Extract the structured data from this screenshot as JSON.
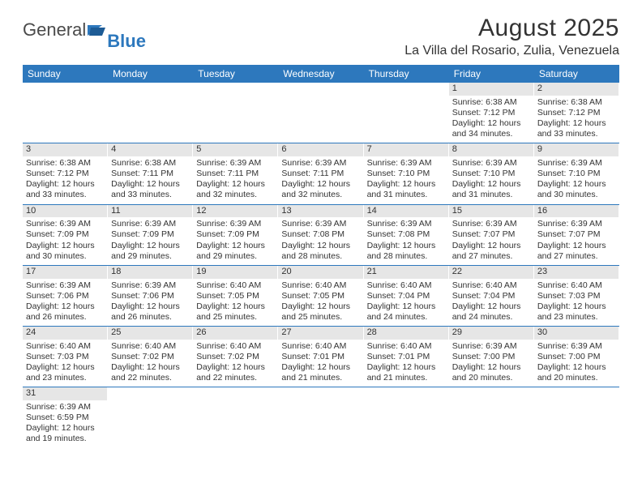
{
  "logo": {
    "text_general": "General",
    "text_blue": "Blue"
  },
  "header": {
    "title": "August 2025",
    "location": "La Villa del Rosario, Zulia, Venezuela"
  },
  "colors": {
    "header_bg": "#2d78bd",
    "header_text": "#ffffff",
    "daynum_bg": "#e6e6e6",
    "row_border": "#2d78bd",
    "text": "#333333"
  },
  "days_of_week": [
    "Sunday",
    "Monday",
    "Tuesday",
    "Wednesday",
    "Thursday",
    "Friday",
    "Saturday"
  ],
  "weeks": [
    [
      null,
      null,
      null,
      null,
      null,
      {
        "n": "1",
        "sunrise": "Sunrise: 6:38 AM",
        "sunset": "Sunset: 7:12 PM",
        "d1": "Daylight: 12 hours",
        "d2": "and 34 minutes."
      },
      {
        "n": "2",
        "sunrise": "Sunrise: 6:38 AM",
        "sunset": "Sunset: 7:12 PM",
        "d1": "Daylight: 12 hours",
        "d2": "and 33 minutes."
      }
    ],
    [
      {
        "n": "3",
        "sunrise": "Sunrise: 6:38 AM",
        "sunset": "Sunset: 7:12 PM",
        "d1": "Daylight: 12 hours",
        "d2": "and 33 minutes."
      },
      {
        "n": "4",
        "sunrise": "Sunrise: 6:38 AM",
        "sunset": "Sunset: 7:11 PM",
        "d1": "Daylight: 12 hours",
        "d2": "and 33 minutes."
      },
      {
        "n": "5",
        "sunrise": "Sunrise: 6:39 AM",
        "sunset": "Sunset: 7:11 PM",
        "d1": "Daylight: 12 hours",
        "d2": "and 32 minutes."
      },
      {
        "n": "6",
        "sunrise": "Sunrise: 6:39 AM",
        "sunset": "Sunset: 7:11 PM",
        "d1": "Daylight: 12 hours",
        "d2": "and 32 minutes."
      },
      {
        "n": "7",
        "sunrise": "Sunrise: 6:39 AM",
        "sunset": "Sunset: 7:10 PM",
        "d1": "Daylight: 12 hours",
        "d2": "and 31 minutes."
      },
      {
        "n": "8",
        "sunrise": "Sunrise: 6:39 AM",
        "sunset": "Sunset: 7:10 PM",
        "d1": "Daylight: 12 hours",
        "d2": "and 31 minutes."
      },
      {
        "n": "9",
        "sunrise": "Sunrise: 6:39 AM",
        "sunset": "Sunset: 7:10 PM",
        "d1": "Daylight: 12 hours",
        "d2": "and 30 minutes."
      }
    ],
    [
      {
        "n": "10",
        "sunrise": "Sunrise: 6:39 AM",
        "sunset": "Sunset: 7:09 PM",
        "d1": "Daylight: 12 hours",
        "d2": "and 30 minutes."
      },
      {
        "n": "11",
        "sunrise": "Sunrise: 6:39 AM",
        "sunset": "Sunset: 7:09 PM",
        "d1": "Daylight: 12 hours",
        "d2": "and 29 minutes."
      },
      {
        "n": "12",
        "sunrise": "Sunrise: 6:39 AM",
        "sunset": "Sunset: 7:09 PM",
        "d1": "Daylight: 12 hours",
        "d2": "and 29 minutes."
      },
      {
        "n": "13",
        "sunrise": "Sunrise: 6:39 AM",
        "sunset": "Sunset: 7:08 PM",
        "d1": "Daylight: 12 hours",
        "d2": "and 28 minutes."
      },
      {
        "n": "14",
        "sunrise": "Sunrise: 6:39 AM",
        "sunset": "Sunset: 7:08 PM",
        "d1": "Daylight: 12 hours",
        "d2": "and 28 minutes."
      },
      {
        "n": "15",
        "sunrise": "Sunrise: 6:39 AM",
        "sunset": "Sunset: 7:07 PM",
        "d1": "Daylight: 12 hours",
        "d2": "and 27 minutes."
      },
      {
        "n": "16",
        "sunrise": "Sunrise: 6:39 AM",
        "sunset": "Sunset: 7:07 PM",
        "d1": "Daylight: 12 hours",
        "d2": "and 27 minutes."
      }
    ],
    [
      {
        "n": "17",
        "sunrise": "Sunrise: 6:39 AM",
        "sunset": "Sunset: 7:06 PM",
        "d1": "Daylight: 12 hours",
        "d2": "and 26 minutes."
      },
      {
        "n": "18",
        "sunrise": "Sunrise: 6:39 AM",
        "sunset": "Sunset: 7:06 PM",
        "d1": "Daylight: 12 hours",
        "d2": "and 26 minutes."
      },
      {
        "n": "19",
        "sunrise": "Sunrise: 6:40 AM",
        "sunset": "Sunset: 7:05 PM",
        "d1": "Daylight: 12 hours",
        "d2": "and 25 minutes."
      },
      {
        "n": "20",
        "sunrise": "Sunrise: 6:40 AM",
        "sunset": "Sunset: 7:05 PM",
        "d1": "Daylight: 12 hours",
        "d2": "and 25 minutes."
      },
      {
        "n": "21",
        "sunrise": "Sunrise: 6:40 AM",
        "sunset": "Sunset: 7:04 PM",
        "d1": "Daylight: 12 hours",
        "d2": "and 24 minutes."
      },
      {
        "n": "22",
        "sunrise": "Sunrise: 6:40 AM",
        "sunset": "Sunset: 7:04 PM",
        "d1": "Daylight: 12 hours",
        "d2": "and 24 minutes."
      },
      {
        "n": "23",
        "sunrise": "Sunrise: 6:40 AM",
        "sunset": "Sunset: 7:03 PM",
        "d1": "Daylight: 12 hours",
        "d2": "and 23 minutes."
      }
    ],
    [
      {
        "n": "24",
        "sunrise": "Sunrise: 6:40 AM",
        "sunset": "Sunset: 7:03 PM",
        "d1": "Daylight: 12 hours",
        "d2": "and 23 minutes."
      },
      {
        "n": "25",
        "sunrise": "Sunrise: 6:40 AM",
        "sunset": "Sunset: 7:02 PM",
        "d1": "Daylight: 12 hours",
        "d2": "and 22 minutes."
      },
      {
        "n": "26",
        "sunrise": "Sunrise: 6:40 AM",
        "sunset": "Sunset: 7:02 PM",
        "d1": "Daylight: 12 hours",
        "d2": "and 22 minutes."
      },
      {
        "n": "27",
        "sunrise": "Sunrise: 6:40 AM",
        "sunset": "Sunset: 7:01 PM",
        "d1": "Daylight: 12 hours",
        "d2": "and 21 minutes."
      },
      {
        "n": "28",
        "sunrise": "Sunrise: 6:40 AM",
        "sunset": "Sunset: 7:01 PM",
        "d1": "Daylight: 12 hours",
        "d2": "and 21 minutes."
      },
      {
        "n": "29",
        "sunrise": "Sunrise: 6:39 AM",
        "sunset": "Sunset: 7:00 PM",
        "d1": "Daylight: 12 hours",
        "d2": "and 20 minutes."
      },
      {
        "n": "30",
        "sunrise": "Sunrise: 6:39 AM",
        "sunset": "Sunset: 7:00 PM",
        "d1": "Daylight: 12 hours",
        "d2": "and 20 minutes."
      }
    ],
    [
      {
        "n": "31",
        "sunrise": "Sunrise: 6:39 AM",
        "sunset": "Sunset: 6:59 PM",
        "d1": "Daylight: 12 hours",
        "d2": "and 19 minutes."
      },
      null,
      null,
      null,
      null,
      null,
      null
    ]
  ]
}
